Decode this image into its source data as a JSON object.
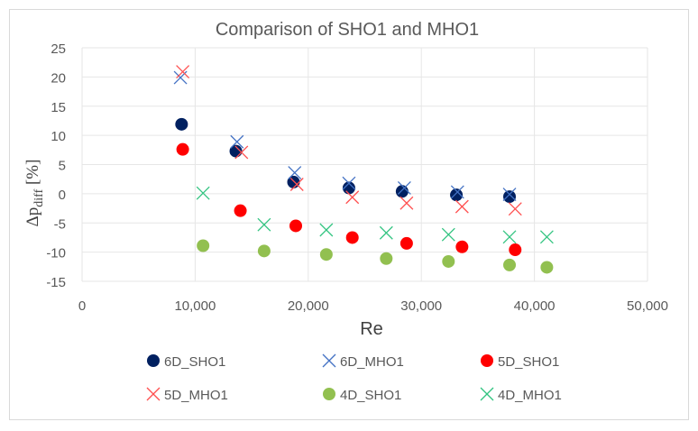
{
  "chart_data": {
    "type": "scatter",
    "title": "Comparison of SHO1 and MHO1",
    "xlabel": "Re",
    "ylabel_main": "Δp",
    "ylabel_sub": "diff",
    "ylabel_unit": " [%]",
    "xlim": [
      0,
      50000
    ],
    "ylim": [
      -15,
      25
    ],
    "x_ticks": [
      0,
      10000,
      20000,
      30000,
      40000,
      50000
    ],
    "x_tick_labels": [
      "0",
      "10,000",
      "20,000",
      "30,000",
      "40,000",
      "50,000"
    ],
    "y_ticks": [
      -15,
      -10,
      -5,
      0,
      5,
      10,
      15,
      20,
      25
    ],
    "y_tick_labels": [
      "-15",
      "-10",
      "-5",
      "0",
      "5",
      "10",
      "15",
      "20",
      "25"
    ],
    "grid": true,
    "legend_position": "bottom",
    "series": [
      {
        "name": "6D_SHO1",
        "marker": "circle",
        "color": "#002060",
        "points": [
          [
            8800,
            11.9
          ],
          [
            13600,
            7.3
          ],
          [
            18700,
            2.0
          ],
          [
            23600,
            1.0
          ],
          [
            28300,
            0.4
          ],
          [
            33100,
            -0.2
          ],
          [
            37800,
            -0.5
          ]
        ]
      },
      {
        "name": "6D_MHO1",
        "marker": "x",
        "color": "#4472c4",
        "points": [
          [
            8700,
            19.9
          ],
          [
            13700,
            8.9
          ],
          [
            18800,
            3.6
          ],
          [
            23600,
            1.8
          ],
          [
            28500,
            1.0
          ],
          [
            33200,
            0.3
          ],
          [
            37800,
            -0.1
          ]
        ]
      },
      {
        "name": "5D_SHO1",
        "marker": "circle",
        "color": "#ff0000",
        "points": [
          [
            8900,
            7.6
          ],
          [
            14000,
            -2.9
          ],
          [
            18900,
            -5.5
          ],
          [
            23900,
            -7.5
          ],
          [
            28700,
            -8.5
          ],
          [
            33600,
            -9.1
          ],
          [
            38300,
            -9.6
          ]
        ]
      },
      {
        "name": "5D_MHO1",
        "marker": "x",
        "color": "#ff5050",
        "points": [
          [
            8900,
            20.9
          ],
          [
            14100,
            7.1
          ],
          [
            19000,
            1.6
          ],
          [
            23900,
            -0.6
          ],
          [
            28700,
            -1.6
          ],
          [
            33600,
            -2.2
          ],
          [
            38300,
            -2.6
          ]
        ]
      },
      {
        "name": "4D_SHO1",
        "marker": "circle",
        "color": "#92c050",
        "points": [
          [
            10700,
            -8.9
          ],
          [
            16100,
            -9.8
          ],
          [
            21600,
            -10.4
          ],
          [
            26900,
            -11.1
          ],
          [
            32400,
            -11.6
          ],
          [
            37800,
            -12.2
          ],
          [
            41100,
            -12.6
          ]
        ]
      },
      {
        "name": "4D_MHO1",
        "marker": "x",
        "color": "#33c481",
        "points": [
          [
            10700,
            0.1
          ],
          [
            16100,
            -5.3
          ],
          [
            21600,
            -6.2
          ],
          [
            26900,
            -6.7
          ],
          [
            32400,
            -7.0
          ],
          [
            37800,
            -7.4
          ],
          [
            41100,
            -7.4
          ]
        ]
      }
    ]
  }
}
